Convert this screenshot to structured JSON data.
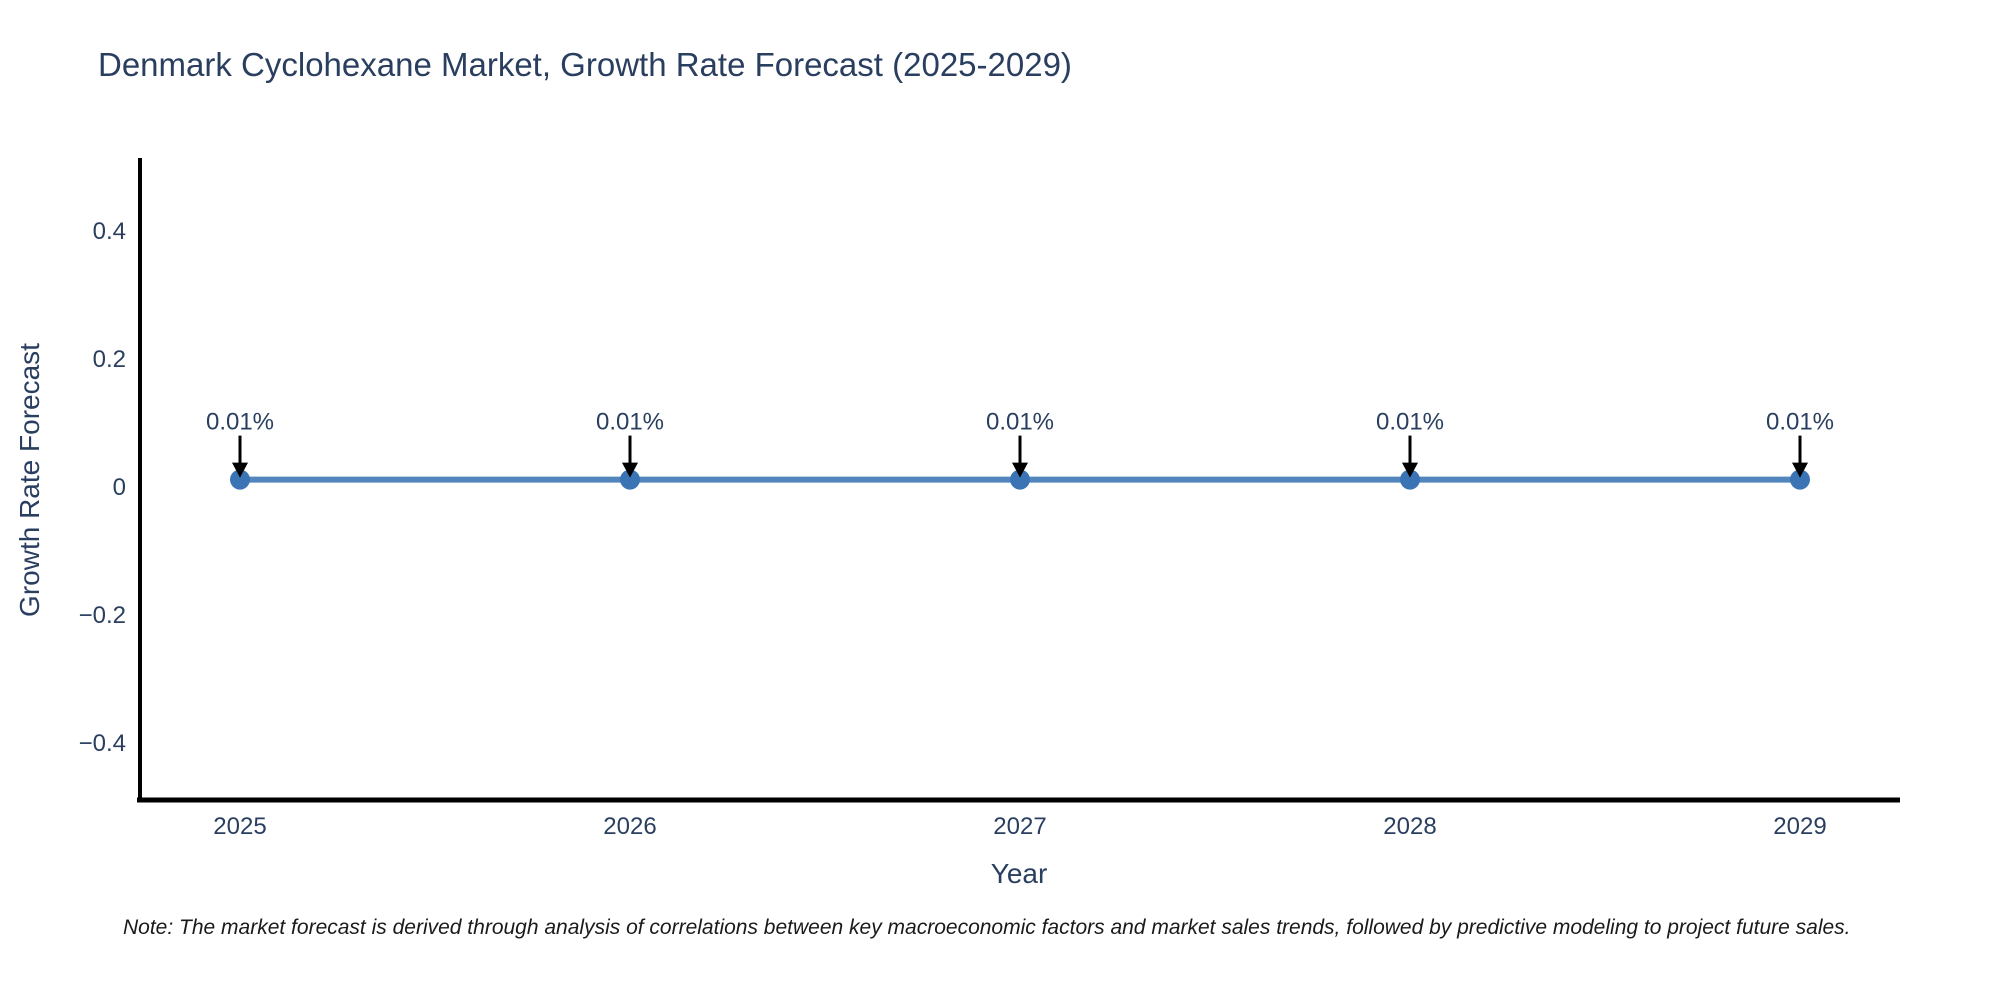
{
  "title": "Denmark Cyclohexane Market, Growth Rate Forecast (2025-2029)",
  "note": "Note: The market forecast is derived through analysis of correlations between key macroeconomic factors and market sales trends, followed by predictive modeling to project future sales.",
  "chart_data": {
    "type": "line",
    "title": "Denmark Cyclohexane Market, Growth Rate Forecast (2025-2029)",
    "xlabel": "Year",
    "ylabel": "Growth Rate Forecast",
    "categories": [
      "2025",
      "2026",
      "2027",
      "2028",
      "2029"
    ],
    "values": [
      0.01,
      0.01,
      0.01,
      0.01,
      0.01
    ],
    "point_labels": [
      "0.01%",
      "0.01%",
      "0.01%",
      "0.01%",
      "0.01%"
    ],
    "yticks": {
      "values": [
        0.4,
        0.2,
        0,
        -0.2,
        -0.4
      ],
      "labels": [
        "0.4",
        "0.2",
        "0",
        "−0.2",
        "−0.4"
      ]
    },
    "ylim": [
      -0.487,
      0.512
    ],
    "grid": false,
    "legend_position": "none",
    "annotation_style": "down-arrow-to-point",
    "colors": {
      "line": "#5386bc",
      "marker": "#3a74b5",
      "axis": "#000000",
      "text": "#2a3f5f",
      "arrow": "#000000",
      "note_text": "#1a1a1a"
    }
  }
}
